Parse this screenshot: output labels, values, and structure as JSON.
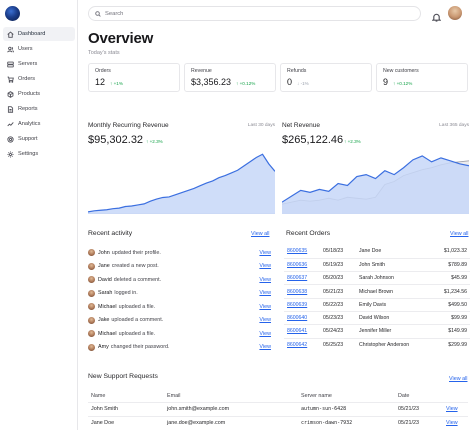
{
  "colors": {
    "accent": "#2563eb",
    "chart_line": "#3b6fe0",
    "chart_fill": "#c7d7f8",
    "positive": "#16a34a"
  },
  "sidebar": {
    "items": [
      {
        "label": "Dashboard",
        "icon": "home-icon"
      },
      {
        "label": "Users",
        "icon": "users-icon"
      },
      {
        "label": "Servers",
        "icon": "server-icon"
      },
      {
        "label": "Orders",
        "icon": "cart-icon"
      },
      {
        "label": "Products",
        "icon": "box-icon"
      },
      {
        "label": "Reports",
        "icon": "document-icon"
      },
      {
        "label": "Analytics",
        "icon": "analytics-icon"
      },
      {
        "label": "Support",
        "icon": "support-icon"
      },
      {
        "label": "Settings",
        "icon": "gear-icon"
      }
    ]
  },
  "search": {
    "placeholder": "Search"
  },
  "page": {
    "title": "Overview",
    "subtitle": "Today's stats"
  },
  "stats": [
    {
      "label": "Orders",
      "value": "12",
      "delta": "+1%",
      "arrow": "↑"
    },
    {
      "label": "Revenue",
      "value": "$3,356.23",
      "delta": "+0.12%",
      "arrow": "↑"
    },
    {
      "label": "Refunds",
      "value": "0",
      "delta": "-1%",
      "arrow": "↓"
    },
    {
      "label": "New customers",
      "value": "9",
      "delta": "+0.12%",
      "arrow": "↑"
    }
  ],
  "charts": {
    "mrr": {
      "title": "Monthly Recurring Revenue",
      "range": "Last 30 days",
      "value": "$95,302.32",
      "delta": "↑ +2.3%"
    },
    "net": {
      "title": "Net Revenue",
      "range": "Last 365 days",
      "value": "$265,122.46",
      "delta": "↑ +2.3%"
    }
  },
  "chart_data": [
    {
      "type": "area",
      "title": "Monthly Recurring Revenue",
      "series": [
        {
          "values": [
            2,
            3,
            3.5,
            4,
            5,
            5.5,
            7,
            7.5,
            8.5,
            9.5,
            12,
            14,
            15.5,
            16,
            18,
            20,
            22,
            24,
            26.5,
            29,
            31,
            34,
            36,
            38.5,
            41,
            45,
            49,
            53,
            56,
            47,
            40
          ]
        }
      ],
      "ylim": [
        0,
        60
      ]
    },
    {
      "type": "area",
      "title": "Net Revenue",
      "series": [
        {
          "values": [
            12,
            18,
            24,
            22,
            25,
            23,
            31,
            29,
            38,
            40,
            36,
            44,
            40,
            47,
            55,
            59,
            53,
            57,
            54,
            51,
            49
          ]
        },
        {
          "values": [
            10,
            12,
            14,
            13,
            14,
            16,
            14,
            17,
            16,
            15,
            17,
            30,
            33,
            39,
            42,
            45,
            47,
            50,
            52,
            53,
            54
          ]
        }
      ],
      "ylim": [
        0,
        65
      ]
    }
  ],
  "activity": {
    "title": "Recent activity",
    "view_all": "View all",
    "items": [
      {
        "name": "John",
        "text": "updated their profile.",
        "link": "View"
      },
      {
        "name": "Jane",
        "text": "created a new post.",
        "link": "View"
      },
      {
        "name": "David",
        "text": "deleted a comment.",
        "link": "View"
      },
      {
        "name": "Sarah",
        "text": "logged in.",
        "link": "View"
      },
      {
        "name": "Michael",
        "text": "uploaded a file.",
        "link": "View"
      },
      {
        "name": "Jake",
        "text": "uploaded a comment.",
        "link": "View"
      },
      {
        "name": "Michael",
        "text": "uploaded a file.",
        "link": "View"
      },
      {
        "name": "Amy",
        "text": "changed their password.",
        "link": "View"
      }
    ]
  },
  "orders": {
    "title": "Recent Orders",
    "view_all": "View all",
    "rows": [
      {
        "id": "8600635",
        "date": "05/18/23",
        "customer": "Jane Doe",
        "amount": "$1,023.32"
      },
      {
        "id": "8600636",
        "date": "05/19/23",
        "customer": "John Smith",
        "amount": "$789.89"
      },
      {
        "id": "8600637",
        "date": "05/20/23",
        "customer": "Sarah Johnson",
        "amount": "$45.99"
      },
      {
        "id": "8600638",
        "date": "05/21/23",
        "customer": "Michael Brown",
        "amount": "$1,234.56"
      },
      {
        "id": "8600639",
        "date": "05/22/23",
        "customer": "Emily Davis",
        "amount": "$499.50"
      },
      {
        "id": "8600640",
        "date": "05/23/23",
        "customer": "David Wilson",
        "amount": "$99.99"
      },
      {
        "id": "8600641",
        "date": "05/24/23",
        "customer": "Jennifer Miller",
        "amount": "$149.99"
      },
      {
        "id": "8600642",
        "date": "05/25/23",
        "customer": "Christopher Anderson",
        "amount": "$299.99"
      }
    ]
  },
  "support": {
    "title": "New Support Requests",
    "view_all": "View all",
    "headers": [
      "Name",
      "Email",
      "Server name",
      "Date",
      ""
    ],
    "rows": [
      {
        "name": "John Smith",
        "email": "john.smith@example.com",
        "server": "autumn-sun-6428",
        "date": "05/21/23",
        "link": "View"
      },
      {
        "name": "Jane Doe",
        "email": "jane.doe@example.com",
        "server": "crimson-dawn-7932",
        "date": "05/21/23",
        "link": "View"
      }
    ]
  }
}
